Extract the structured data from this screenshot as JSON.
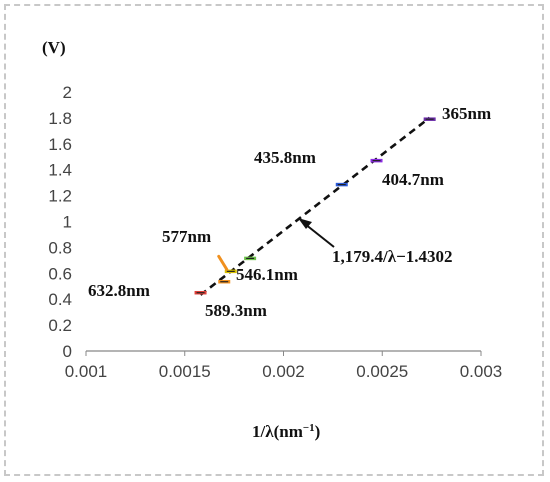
{
  "chart_data": {
    "type": "scatter",
    "ylabel": "(V)",
    "xlabel_base": "1/λ(nm",
    "xlabel_sup": "−1",
    "xlabel_close": ")",
    "xlim": [
      0.001,
      0.003
    ],
    "ylim": [
      0,
      2
    ],
    "xticks": [
      "0.001",
      "0.0015",
      "0.002",
      "0.0025",
      "0.003"
    ],
    "yticks": [
      "0",
      "0.2",
      "0.4",
      "0.6",
      "0.8",
      "1",
      "1.2",
      "1.4",
      "1.6",
      "1.8",
      "2"
    ],
    "points": [
      {
        "label": "632.8nm",
        "x": 0.00158,
        "y": 0.45,
        "color": "#e0403a"
      },
      {
        "label": "589.3nm",
        "x": 0.0017,
        "y": 0.535,
        "color": "#f0901e"
      },
      {
        "label": "577nm",
        "x": 0.001733,
        "y": 0.615,
        "color": "#d8c000"
      },
      {
        "label": "546.1nm",
        "x": 0.001831,
        "y": 0.715,
        "color": "#6cc04a"
      },
      {
        "label": "435.8nm",
        "x": 0.002295,
        "y": 1.285,
        "color": "#2a5ad8"
      },
      {
        "label": "404.7nm",
        "x": 0.002471,
        "y": 1.47,
        "color": "#8a2be2"
      },
      {
        "label": "365nm",
        "x": 0.00274,
        "y": 1.79,
        "color": "#6a2ba8"
      }
    ],
    "fit": {
      "label": "1,179.4/λ−1.4302",
      "slope": 1179.4,
      "intercept": -1.4302,
      "x_range": [
        0.00158,
        0.00274
      ],
      "style": "dashed",
      "color": "#111111"
    },
    "grid": false,
    "legend": "none"
  }
}
